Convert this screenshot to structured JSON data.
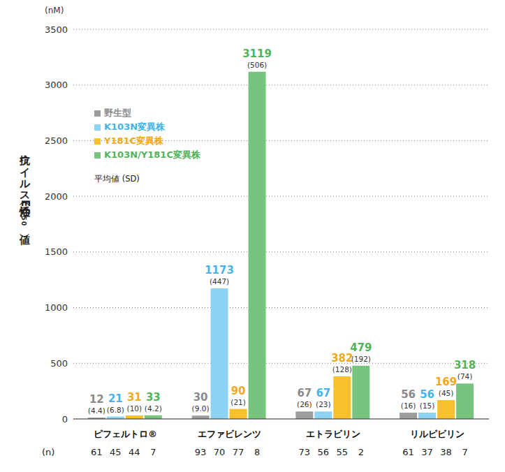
{
  "chart_data": {
    "type": "bar",
    "y_label": "抗ウイルス活性（EC₅₀値）",
    "y_unit": "(nM)",
    "categories": [
      "ピフェルトロ®",
      "エファビレンツ",
      "エトラビリン",
      "リルピビリン"
    ],
    "series": [
      {
        "name": "野生型",
        "color": "#9c9c9c",
        "values": [
          12,
          30,
          67,
          56
        ],
        "sd_labels": [
          "(4.4)",
          "(9.0)",
          "(26)",
          "(16)"
        ],
        "n": [
          61,
          93,
          73,
          61
        ]
      },
      {
        "name": "K103N変異株",
        "color": "#8dd3f3",
        "values": [
          21,
          1173,
          67,
          56
        ],
        "sd_labels": [
          "(6.8)",
          "(447)",
          "(23)",
          "(15)"
        ],
        "n": [
          45,
          70,
          56,
          37
        ]
      },
      {
        "name": "Y181C変異株",
        "color": "#f8c02c",
        "values": [
          31,
          90,
          382,
          169
        ],
        "sd_labels": [
          "(10)",
          "(21)",
          "(128)",
          "(45)"
        ],
        "n": [
          44,
          77,
          55,
          38
        ]
      },
      {
        "name": "K103N/Y181C変異株",
        "color": "#78c47e",
        "values": [
          33,
          3119,
          479,
          318
        ],
        "sd_labels": [
          "(4.2)",
          "(506)",
          "(192)",
          "(74)"
        ],
        "n": [
          7,
          8,
          2,
          7
        ]
      }
    ],
    "legend_note": "平均値 (SD)",
    "n_label": "(n)",
    "ylim": [
      0,
      3500
    ],
    "yticks": [
      0,
      500,
      1000,
      1500,
      2000,
      2500,
      3000,
      3500
    ],
    "grid": true,
    "data_labels": true,
    "legend": "upper left"
  }
}
